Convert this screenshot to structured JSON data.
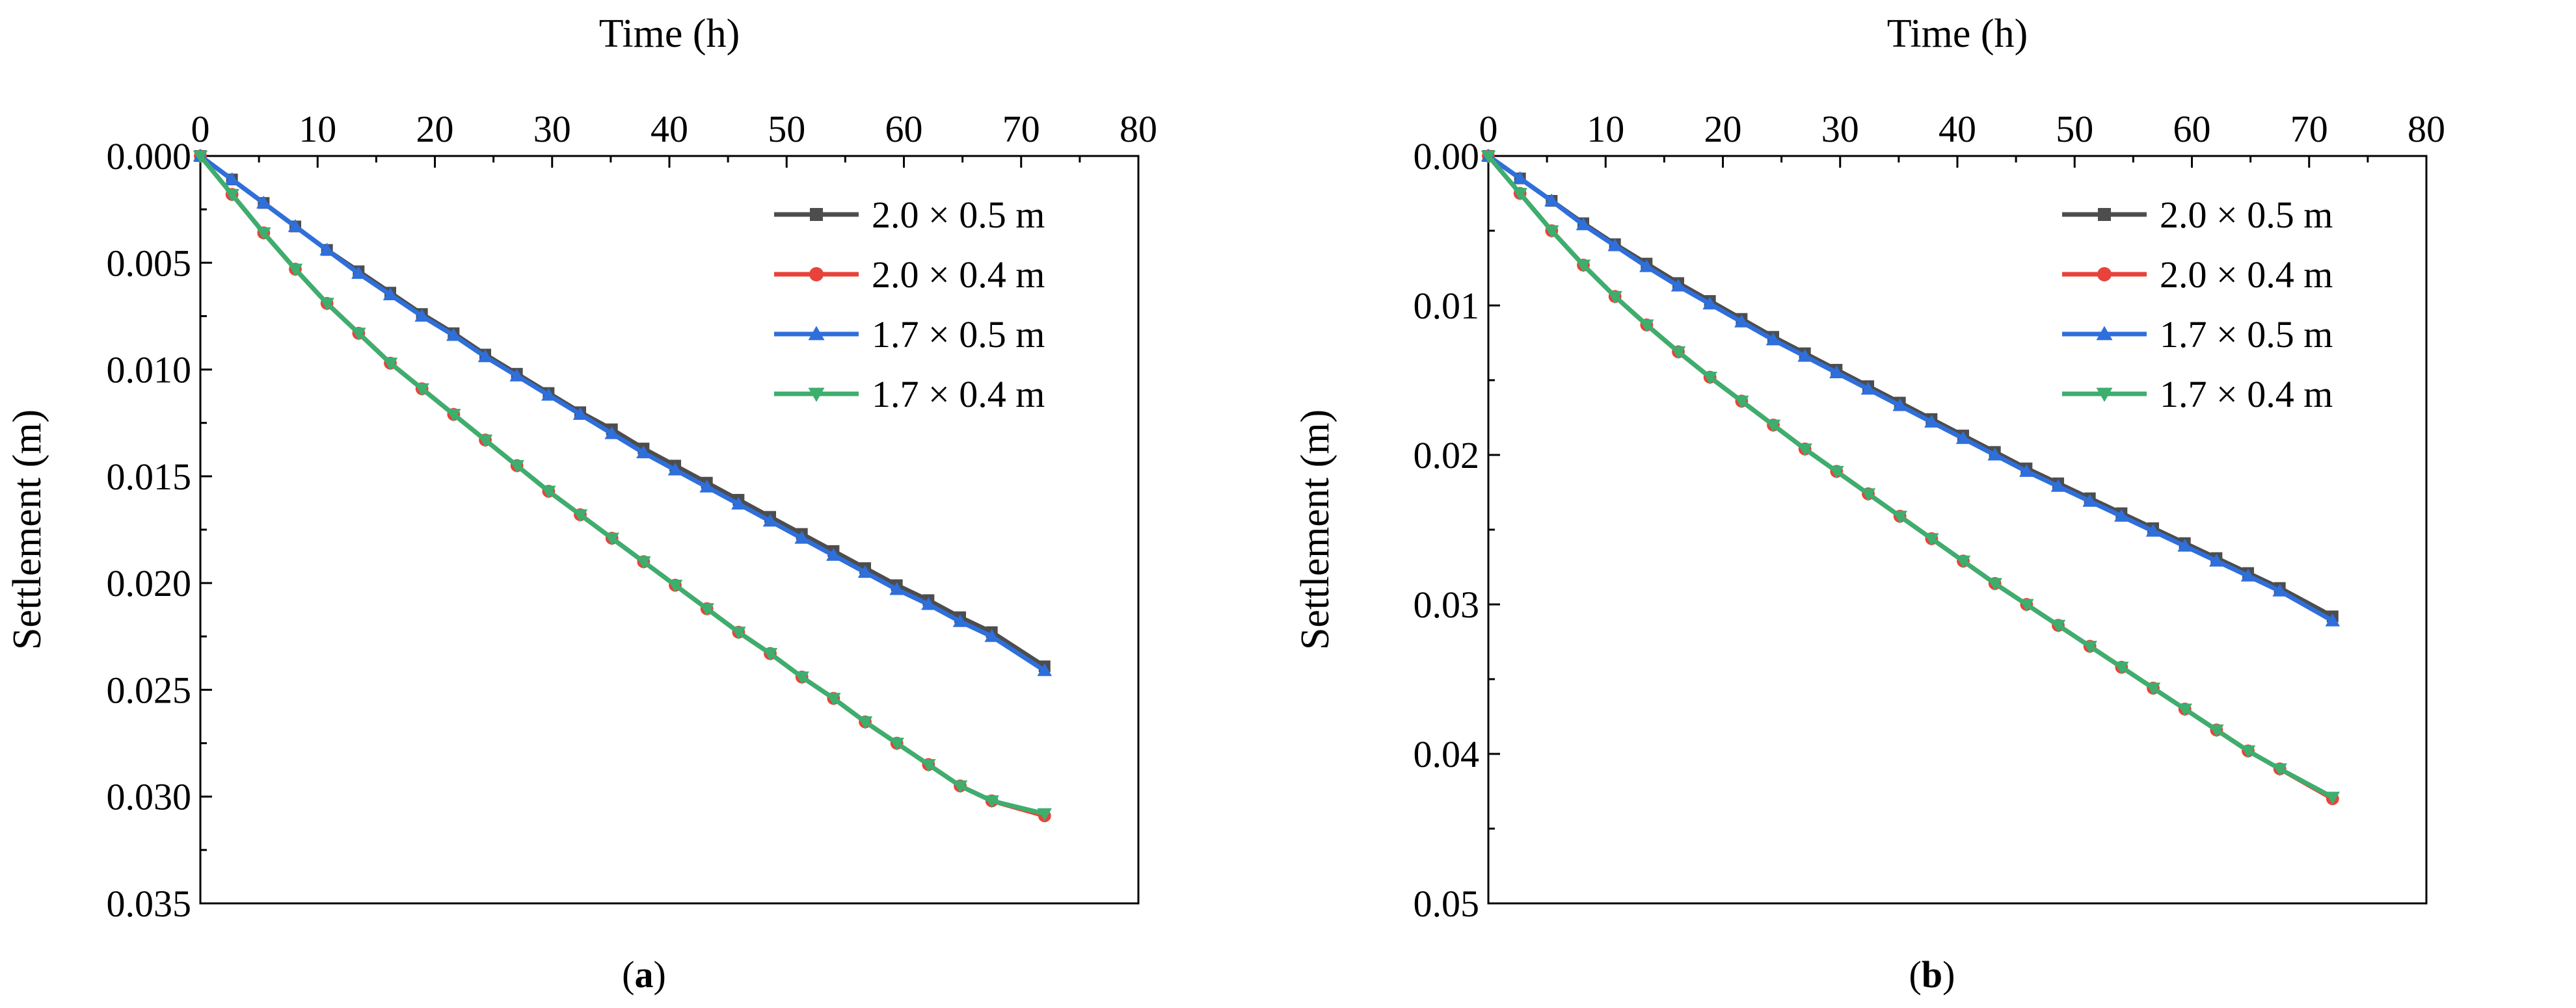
{
  "chart_data": [
    {
      "type": "line",
      "panel": "(a)",
      "xlabel": "Time (h)",
      "ylabel": "Settlement (m)",
      "xlim": [
        0,
        80
      ],
      "ylim": [
        0.035,
        0
      ],
      "yreversed": true,
      "x_axis_position": "top",
      "xticks": [
        "0",
        "10",
        "20",
        "30",
        "40",
        "50",
        "60",
        "70",
        "80"
      ],
      "yticks": [
        "0.000",
        "0.005",
        "0.010",
        "0.015",
        "0.020",
        "0.025",
        "0.030",
        "0.035"
      ],
      "ytick_values": [
        0,
        0.005,
        0.01,
        0.015,
        0.02,
        0.025,
        0.03,
        0.035
      ],
      "legend_position": "top-right",
      "series": [
        {
          "name": "2.0 × 0.5 m",
          "color": "#4d4d4d",
          "marker": "square",
          "x": [
            0,
            2.7,
            5.4,
            8.1,
            10.8,
            13.5,
            16.2,
            18.9,
            21.6,
            24.3,
            27,
            29.7,
            32.4,
            35.1,
            37.8,
            40.5,
            43.2,
            45.9,
            48.6,
            51.3,
            54,
            56.7,
            59.4,
            62.1,
            64.8,
            67.5,
            72
          ],
          "y": [
            0,
            0.0011,
            0.0022,
            0.0033,
            0.0044,
            0.0054,
            0.0064,
            0.0074,
            0.0083,
            0.0093,
            0.0102,
            0.0111,
            0.012,
            0.0128,
            0.0137,
            0.0145,
            0.0153,
            0.0161,
            0.0169,
            0.0177,
            0.0185,
            0.0193,
            0.0201,
            0.0208,
            0.0216,
            0.0223,
            0.0239
          ]
        },
        {
          "name": "2.0 × 0.4 m",
          "color": "#e8433a",
          "marker": "circle",
          "x": [
            0,
            2.7,
            5.4,
            8.1,
            10.8,
            13.5,
            16.2,
            18.9,
            21.6,
            24.3,
            27,
            29.7,
            32.4,
            35.1,
            37.8,
            40.5,
            43.2,
            45.9,
            48.6,
            51.3,
            54,
            56.7,
            59.4,
            62.1,
            64.8,
            67.5,
            72
          ],
          "y": [
            0,
            0.0018,
            0.0036,
            0.0053,
            0.0069,
            0.0083,
            0.0097,
            0.0109,
            0.0121,
            0.0133,
            0.0145,
            0.0157,
            0.0168,
            0.0179,
            0.019,
            0.0201,
            0.0212,
            0.0223,
            0.0233,
            0.0244,
            0.0254,
            0.0265,
            0.0275,
            0.0285,
            0.0295,
            0.0302,
            0.0309
          ]
        },
        {
          "name": "1.7 × 0.5 m",
          "color": "#2f6fdb",
          "marker": "triangle-up",
          "x": [
            0,
            2.7,
            5.4,
            8.1,
            10.8,
            13.5,
            16.2,
            18.9,
            21.6,
            24.3,
            27,
            29.7,
            32.4,
            35.1,
            37.8,
            40.5,
            43.2,
            45.9,
            48.6,
            51.3,
            54,
            56.7,
            59.4,
            62.1,
            64.8,
            67.5,
            72
          ],
          "y": [
            0,
            0.0011,
            0.0022,
            0.0033,
            0.0044,
            0.0055,
            0.0065,
            0.0075,
            0.0084,
            0.0094,
            0.0103,
            0.0112,
            0.0121,
            0.013,
            0.0139,
            0.0147,
            0.0155,
            0.0163,
            0.0171,
            0.0179,
            0.0187,
            0.0195,
            0.0203,
            0.021,
            0.0218,
            0.0225,
            0.0241
          ]
        },
        {
          "name": "1.7 × 0.4 m",
          "color": "#3dae6e",
          "marker": "triangle-down",
          "x": [
            0,
            2.7,
            5.4,
            8.1,
            10.8,
            13.5,
            16.2,
            18.9,
            21.6,
            24.3,
            27,
            29.7,
            32.4,
            35.1,
            37.8,
            40.5,
            43.2,
            45.9,
            48.6,
            51.3,
            54,
            56.7,
            59.4,
            62.1,
            64.8,
            67.5,
            72
          ],
          "y": [
            0,
            0.0018,
            0.0036,
            0.0053,
            0.0069,
            0.0083,
            0.0097,
            0.0109,
            0.0121,
            0.0133,
            0.0145,
            0.0157,
            0.0168,
            0.0179,
            0.019,
            0.0201,
            0.0212,
            0.0223,
            0.0233,
            0.0244,
            0.0254,
            0.0265,
            0.0275,
            0.0285,
            0.0295,
            0.0302,
            0.0308
          ]
        }
      ]
    },
    {
      "type": "line",
      "panel": "(b)",
      "xlabel": "Time (h)",
      "ylabel": "Settlement (m)",
      "xlim": [
        0,
        80
      ],
      "ylim": [
        0.05,
        0
      ],
      "yreversed": true,
      "x_axis_position": "top",
      "xticks": [
        "0",
        "10",
        "20",
        "30",
        "40",
        "50",
        "60",
        "70",
        "80"
      ],
      "yticks": [
        "0.00",
        "0.01",
        "0.02",
        "0.03",
        "0.04",
        "0.05"
      ],
      "ytick_values": [
        0,
        0.01,
        0.02,
        0.03,
        0.04,
        0.05
      ],
      "legend_position": "top-right",
      "series": [
        {
          "name": "2.0 × 0.5 m",
          "color": "#4d4d4d",
          "marker": "square",
          "x": [
            0,
            2.7,
            5.4,
            8.1,
            10.8,
            13.5,
            16.2,
            18.9,
            21.6,
            24.3,
            27,
            29.7,
            32.4,
            35.1,
            37.8,
            40.5,
            43.2,
            45.9,
            48.6,
            51.3,
            54,
            56.7,
            59.4,
            62.1,
            64.8,
            67.5,
            72
          ],
          "y": [
            0,
            0.0015,
            0.003,
            0.0045,
            0.0059,
            0.0072,
            0.0085,
            0.0097,
            0.0109,
            0.0121,
            0.0132,
            0.0143,
            0.0154,
            0.0165,
            0.0176,
            0.0187,
            0.0198,
            0.0209,
            0.0219,
            0.0229,
            0.0239,
            0.0249,
            0.0259,
            0.0269,
            0.0279,
            0.0289,
            0.0308
          ]
        },
        {
          "name": "2.0 × 0.4 m",
          "color": "#e8433a",
          "marker": "circle",
          "x": [
            0,
            2.7,
            5.4,
            8.1,
            10.8,
            13.5,
            16.2,
            18.9,
            21.6,
            24.3,
            27,
            29.7,
            32.4,
            35.1,
            37.8,
            40.5,
            43.2,
            45.9,
            48.6,
            51.3,
            54,
            56.7,
            59.4,
            62.1,
            64.8,
            67.5,
            72
          ],
          "y": [
            0,
            0.0025,
            0.005,
            0.0073,
            0.0094,
            0.0113,
            0.0131,
            0.0148,
            0.0164,
            0.018,
            0.0196,
            0.0211,
            0.0226,
            0.0241,
            0.0256,
            0.0271,
            0.0286,
            0.03,
            0.0314,
            0.0328,
            0.0342,
            0.0356,
            0.037,
            0.0384,
            0.0398,
            0.041,
            0.043
          ]
        },
        {
          "name": "1.7 × 0.5 m",
          "color": "#2f6fdb",
          "marker": "triangle-up",
          "x": [
            0,
            2.7,
            5.4,
            8.1,
            10.8,
            13.5,
            16.2,
            18.9,
            21.6,
            24.3,
            27,
            29.7,
            32.4,
            35.1,
            37.8,
            40.5,
            43.2,
            45.9,
            48.6,
            51.3,
            54,
            56.7,
            59.4,
            62.1,
            64.8,
            67.5,
            72
          ],
          "y": [
            0,
            0.0015,
            0.003,
            0.0046,
            0.006,
            0.0074,
            0.0087,
            0.0099,
            0.0111,
            0.0123,
            0.0134,
            0.0145,
            0.0156,
            0.0167,
            0.0178,
            0.0189,
            0.02,
            0.0211,
            0.0221,
            0.0231,
            0.0241,
            0.0251,
            0.0261,
            0.0271,
            0.0281,
            0.0291,
            0.0311
          ]
        },
        {
          "name": "1.7 × 0.4 m",
          "color": "#3dae6e",
          "marker": "triangle-down",
          "x": [
            0,
            2.7,
            5.4,
            8.1,
            10.8,
            13.5,
            16.2,
            18.9,
            21.6,
            24.3,
            27,
            29.7,
            32.4,
            35.1,
            37.8,
            40.5,
            43.2,
            45.9,
            48.6,
            51.3,
            54,
            56.7,
            59.4,
            62.1,
            64.8,
            67.5,
            72
          ],
          "y": [
            0,
            0.0025,
            0.005,
            0.0073,
            0.0094,
            0.0113,
            0.0131,
            0.0148,
            0.0164,
            0.018,
            0.0196,
            0.0211,
            0.0226,
            0.0241,
            0.0256,
            0.0271,
            0.0286,
            0.03,
            0.0314,
            0.0328,
            0.0342,
            0.0356,
            0.037,
            0.0384,
            0.0398,
            0.041,
            0.0429
          ]
        }
      ]
    }
  ]
}
